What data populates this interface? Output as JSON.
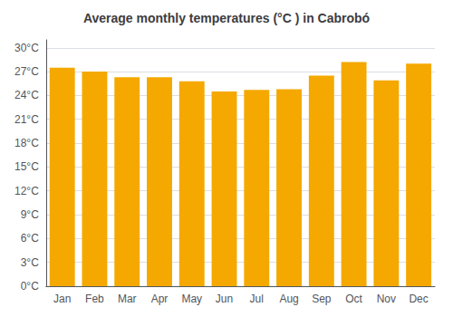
{
  "chart_data": {
    "type": "bar",
    "title": "Average monthly temperatures (°C ) in Cabrobó",
    "categories": [
      "Jan",
      "Feb",
      "Mar",
      "Apr",
      "May",
      "Jun",
      "Jul",
      "Aug",
      "Sep",
      "Oct",
      "Nov",
      "Dec"
    ],
    "values": [
      27.5,
      27.0,
      26.3,
      26.3,
      25.8,
      24.5,
      24.7,
      24.8,
      26.5,
      28.2,
      25.9,
      28.0
    ],
    "color": "#F5A800",
    "ylim": [
      0,
      31
    ],
    "yticks": [
      {
        "value": 0,
        "label": "0°C"
      },
      {
        "value": 3,
        "label": "3°C"
      },
      {
        "value": 6,
        "label": "6°C"
      },
      {
        "value": 9,
        "label": "9°C"
      },
      {
        "value": 12,
        "label": "12°C"
      },
      {
        "value": 15,
        "label": "15°C"
      },
      {
        "value": 18,
        "label": "18°C"
      },
      {
        "value": 21,
        "label": "21°C"
      },
      {
        "value": 24,
        "label": "24°C"
      },
      {
        "value": 27,
        "label": "27°C"
      },
      {
        "value": 30,
        "label": "30°C"
      }
    ],
    "grid": true
  }
}
